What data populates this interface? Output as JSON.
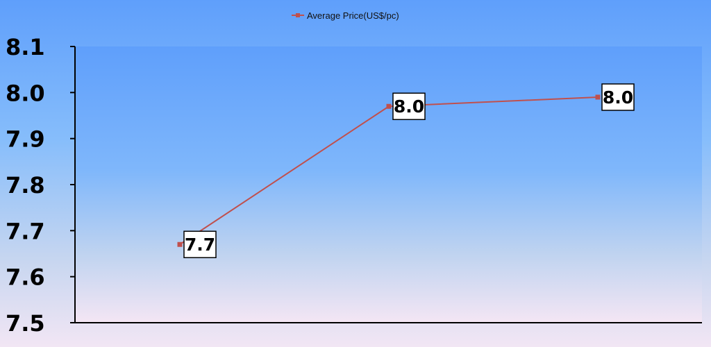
{
  "chart_data": {
    "type": "line",
    "title": "",
    "xlabel": "",
    "ylabel": "",
    "ylim": [
      7.5,
      8.1
    ],
    "y_ticks": [
      "7.5",
      "7.6",
      "7.7",
      "7.8",
      "7.9",
      "8.0",
      "8.1"
    ],
    "categories": [
      "",
      "",
      ""
    ],
    "legend_position": "top-center",
    "grid": false,
    "series": [
      {
        "name": "Average Price(US$/pc)",
        "color": "#c0504d",
        "values": [
          7.67,
          7.97,
          7.99
        ],
        "data_labels": [
          "7.7",
          "8.0",
          "8.0"
        ]
      }
    ]
  }
}
